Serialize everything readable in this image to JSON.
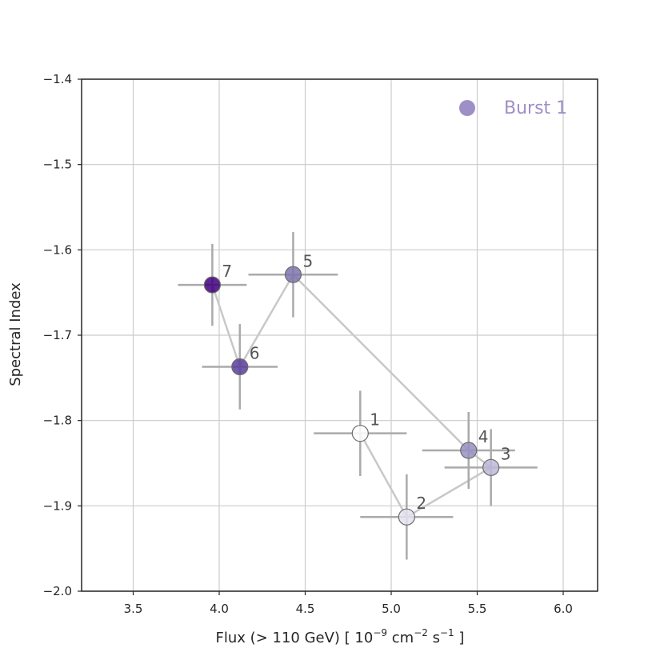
{
  "chart_data": {
    "type": "scatter",
    "title": "",
    "xlabel": "Flux (> 110 GeV) [ 10",
    "xlabel_exp1": "−9",
    "xlabel_mid": " cm",
    "xlabel_exp2": "−2",
    "xlabel_mid2": " s",
    "xlabel_exp3": "−1",
    "xlabel_end": " ]",
    "ylabel": "Spectral Index",
    "xlim": [
      3.2,
      6.2
    ],
    "ylim": [
      -2.0,
      -1.4
    ],
    "xticks": [
      3.5,
      4.0,
      4.5,
      5.0,
      5.5,
      6.0
    ],
    "xtick_labels": [
      "3.5",
      "4.0",
      "4.5",
      "5.0",
      "5.5",
      "6.0"
    ],
    "yticks": [
      -2.0,
      -1.9,
      -1.8,
      -1.7,
      -1.6,
      -1.5,
      -1.4
    ],
    "ytick_labels": [
      "−2.0",
      "−1.9",
      "−1.8",
      "−1.7",
      "−1.6",
      "−1.5",
      "−1.4"
    ],
    "grid": true,
    "legend": {
      "position": "top-right",
      "label": "Burst 1",
      "color": "#9f8fc7"
    },
    "series": [
      {
        "name": "Burst 1",
        "points": [
          {
            "label": "1",
            "x": 4.82,
            "y": -1.815,
            "xerr": 0.27,
            "yerr": 0.05,
            "color": "#ffffff"
          },
          {
            "label": "2",
            "x": 5.09,
            "y": -1.913,
            "xerr": 0.27,
            "yerr": 0.05,
            "color": "#e4e2ef"
          },
          {
            "label": "3",
            "x": 5.58,
            "y": -1.855,
            "xerr": 0.27,
            "yerr": 0.045,
            "color": "#bdb9d9"
          },
          {
            "label": "4",
            "x": 5.45,
            "y": -1.835,
            "xerr": 0.27,
            "yerr": 0.045,
            "color": "#9691c2"
          },
          {
            "label": "5",
            "x": 4.43,
            "y": -1.629,
            "xerr": 0.26,
            "yerr": 0.05,
            "color": "#7c74ae"
          },
          {
            "label": "6",
            "x": 4.12,
            "y": -1.737,
            "xerr": 0.22,
            "yerr": 0.05,
            "color": "#5b3d9c"
          },
          {
            "label": "7",
            "x": 3.96,
            "y": -1.641,
            "xerr": 0.2,
            "yerr": 0.048,
            "color": "#3f007d"
          }
        ]
      }
    ],
    "line_color": "#c8c8c8",
    "errorbar_color": "#aaaaaa",
    "grid_color": "#cccccc"
  }
}
